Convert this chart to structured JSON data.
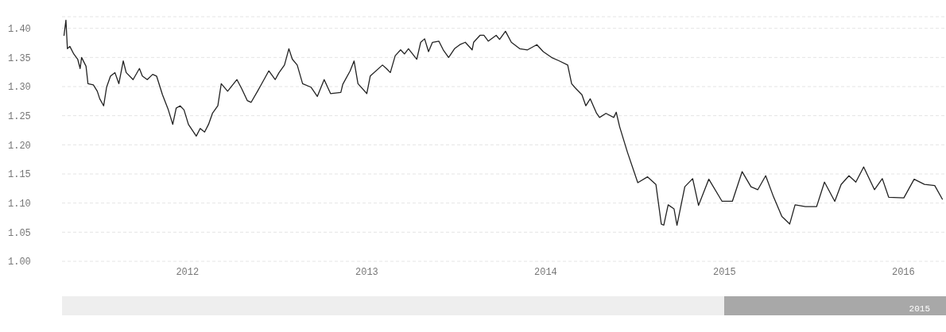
{
  "chart_data": {
    "type": "line",
    "xlim": [
      "2011-04-20",
      "2016-03-28"
    ],
    "xticks": [
      "2012",
      "2013",
      "2014",
      "2015",
      "2016"
    ],
    "ylim": [
      1.0,
      1.42
    ],
    "yticks": [
      {
        "value": 1.0,
        "label": "1.00"
      },
      {
        "value": 1.05,
        "label": "1.05"
      },
      {
        "value": 1.1,
        "label": "1.10"
      },
      {
        "value": 1.15,
        "label": "1.15"
      },
      {
        "value": 1.2,
        "label": "1.20"
      },
      {
        "value": 1.25,
        "label": "1.25"
      },
      {
        "value": 1.3,
        "label": "1.30"
      },
      {
        "value": 1.35,
        "label": "1.35"
      },
      {
        "value": 1.4,
        "label": "1.40"
      }
    ],
    "grid": "y",
    "marker": "none",
    "line_style": "solid",
    "annotations": [
      "2015"
    ],
    "x": [
      "2011-04-24",
      "2011-04-28",
      "2011-05-01",
      "2011-05-06",
      "2011-05-14",
      "2011-05-22",
      "2011-05-27",
      "2011-05-30",
      "2011-06-08",
      "2011-06-12",
      "2011-06-23",
      "2011-07-01",
      "2011-07-06",
      "2011-07-14",
      "2011-07-20",
      "2011-07-28",
      "2011-08-06",
      "2011-08-14",
      "2011-08-23",
      "2011-08-29",
      "2011-09-12",
      "2011-09-25",
      "2011-10-01",
      "2011-10-11",
      "2011-10-22",
      "2011-10-30",
      "2011-11-11",
      "2011-11-23",
      "2011-12-02",
      "2011-12-09",
      "2011-12-17",
      "2011-12-25",
      "2012-01-03",
      "2012-01-19",
      "2012-01-27",
      "2012-02-05",
      "2012-02-13",
      "2012-02-21",
      "2012-03-03",
      "2012-03-10",
      "2012-03-23",
      "2012-04-11",
      "2012-04-21",
      "2012-05-02",
      "2012-05-10",
      "2012-05-23",
      "2012-05-29",
      "2012-06-15",
      "2012-06-28",
      "2012-07-06",
      "2012-07-17",
      "2012-07-26",
      "2012-08-02",
      "2012-08-12",
      "2012-08-23",
      "2012-09-09",
      "2012-09-22",
      "2012-10-06",
      "2012-10-19",
      "2012-11-09",
      "2012-11-13",
      "2012-11-28",
      "2012-12-06",
      "2012-12-14",
      "2013-01-01",
      "2013-01-08",
      "2013-02-02",
      "2013-02-10",
      "2013-02-18",
      "2013-02-28",
      "2013-03-11",
      "2013-03-19",
      "2013-03-27",
      "2013-04-13",
      "2013-04-21",
      "2013-04-29",
      "2013-05-07",
      "2013-05-15",
      "2013-05-28",
      "2013-06-06",
      "2013-06-17",
      "2013-06-29",
      "2013-07-10",
      "2013-07-21",
      "2013-08-04",
      "2013-08-07",
      "2013-08-20",
      "2013-08-28",
      "2013-09-06",
      "2013-09-22",
      "2013-09-29",
      "2013-10-11",
      "2013-10-23",
      "2013-11-09",
      "2013-11-25",
      "2013-12-14",
      "2013-12-27",
      "2014-01-13",
      "2014-01-29",
      "2014-02-15",
      "2014-02-23",
      "2014-03-01",
      "2014-03-16",
      "2014-03-24",
      "2014-04-02",
      "2014-04-15",
      "2014-04-21",
      "2014-05-04",
      "2014-05-20",
      "2014-05-25",
      "2014-06-01",
      "2014-06-17",
      "2014-07-08",
      "2014-07-28",
      "2014-08-14",
      "2014-08-25",
      "2014-08-30",
      "2014-09-08",
      "2014-09-20",
      "2014-09-26",
      "2014-10-12",
      "2014-10-28",
      "2014-11-09",
      "2014-11-30",
      "2014-12-27",
      "2015-01-17",
      "2015-02-06",
      "2015-02-24",
      "2015-03-10",
      "2015-03-26",
      "2015-04-10",
      "2015-04-28",
      "2015-05-14",
      "2015-05-25",
      "2015-06-15",
      "2015-07-08",
      "2015-07-24",
      "2015-08-14",
      "2015-08-27",
      "2015-09-12",
      "2015-09-26",
      "2015-10-12",
      "2015-11-03",
      "2015-11-19",
      "2015-12-02",
      "2016-01-02",
      "2016-01-23",
      "2016-02-13",
      "2016-03-05",
      "2016-03-21"
    ],
    "series": [
      {
        "color": "#222222",
        "values": [
          1.387,
          1.414,
          1.365,
          1.369,
          1.356,
          1.347,
          1.331,
          1.35,
          1.335,
          1.305,
          1.303,
          1.292,
          1.279,
          1.267,
          1.299,
          1.318,
          1.324,
          1.305,
          1.344,
          1.324,
          1.312,
          1.331,
          1.318,
          1.312,
          1.321,
          1.318,
          1.286,
          1.26,
          1.235,
          1.263,
          1.267,
          1.26,
          1.235,
          1.215,
          1.228,
          1.222,
          1.235,
          1.254,
          1.267,
          1.305,
          1.292,
          1.312,
          1.296,
          1.276,
          1.273,
          1.292,
          1.301,
          1.327,
          1.312,
          1.324,
          1.337,
          1.365,
          1.347,
          1.337,
          1.305,
          1.299,
          1.283,
          1.312,
          1.288,
          1.29,
          1.304,
          1.327,
          1.344,
          1.305,
          1.288,
          1.318,
          1.337,
          1.331,
          1.324,
          1.353,
          1.363,
          1.356,
          1.365,
          1.347,
          1.376,
          1.382,
          1.36,
          1.376,
          1.378,
          1.363,
          1.35,
          1.365,
          1.372,
          1.376,
          1.363,
          1.376,
          1.388,
          1.388,
          1.378,
          1.388,
          1.381,
          1.395,
          1.376,
          1.365,
          1.363,
          1.372,
          1.36,
          1.35,
          1.344,
          1.337,
          1.305,
          1.299,
          1.286,
          1.267,
          1.279,
          1.254,
          1.247,
          1.254,
          1.247,
          1.256,
          1.231,
          1.187,
          1.135,
          1.145,
          1.132,
          1.064,
          1.062,
          1.097,
          1.09,
          1.062,
          1.128,
          1.142,
          1.096,
          1.141,
          1.103,
          1.103,
          1.154,
          1.128,
          1.123,
          1.147,
          1.113,
          1.077,
          1.064,
          1.097,
          1.094,
          1.094,
          1.136,
          1.103,
          1.132,
          1.147,
          1.136,
          1.162,
          1.123,
          1.142,
          1.11,
          1.109,
          1.141,
          1.132,
          1.13,
          1.106
        ]
      }
    ]
  }
}
